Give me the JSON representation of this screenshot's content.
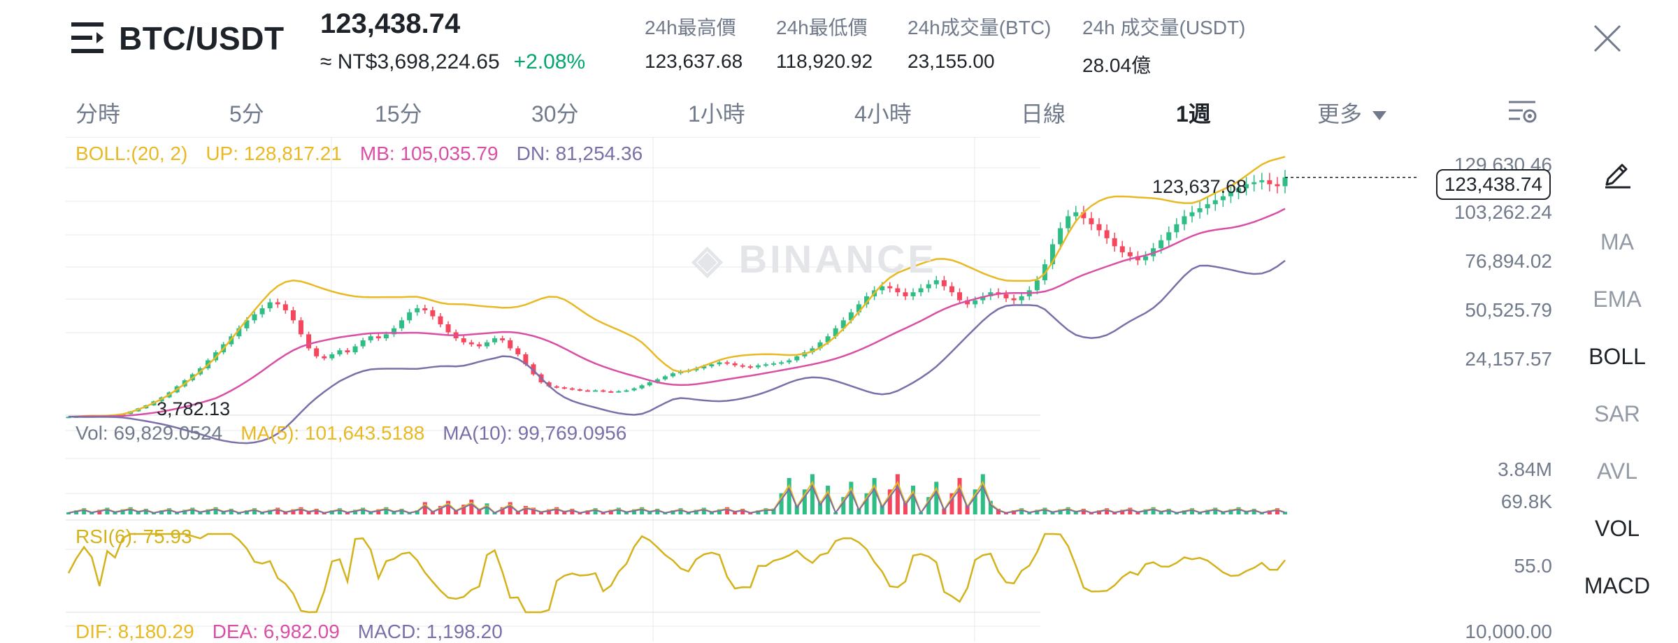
{
  "header": {
    "pair": "BTC/USDT",
    "price": "123,438.74",
    "price_local": "≈ NT$3,698,224.65",
    "change": "+2.08%",
    "stats": [
      {
        "label": "24h最高價",
        "value": "123,637.68"
      },
      {
        "label": "24h最低價",
        "value": "118,920.92"
      },
      {
        "label": "24h成交量(BTC)",
        "value": "23,155.00"
      },
      {
        "label": "24h 成交量(USDT)",
        "value": "28.04億"
      }
    ]
  },
  "intervals": [
    "分時",
    "5分",
    "15分",
    "30分",
    "1小時",
    "4小時",
    "日線",
    "1週",
    "更多"
  ],
  "active_interval": "1週",
  "watermark": "BINANCE",
  "boll": {
    "label": "BOLL:(20, 2)",
    "up": "UP: 128,817.21",
    "mb": "MB: 105,035.79",
    "dn": "DN: 81,254.36"
  },
  "price_axis": [
    "129,630.46",
    "103,262.24",
    "76,894.02",
    "50,525.79",
    "24,157.57"
  ],
  "current_price": "123,438.74",
  "high_label": "123,637.68",
  "low_label": "3,782.13",
  "vol": {
    "vol": "Vol: 69,829.0524",
    "ma5": "MA(5): 101,643.5188",
    "ma10": "MA(10): 99,769.0956"
  },
  "vol_axis": [
    "3.84M",
    "69.8K"
  ],
  "rsi": {
    "label": "RSI(6): 75.93"
  },
  "rsi_axis": [
    "55.0"
  ],
  "macd": {
    "dif": "DIF: 8,180.29",
    "dea": "DEA: 6,982.09",
    "macd": "MACD: 1,198.20"
  },
  "macd_axis": [
    "10,000.00"
  ],
  "side_items": [
    "MA",
    "EMA",
    "BOLL",
    "SAR",
    "AVL",
    "VOL",
    "MACD"
  ],
  "side_active": [
    "BOLL",
    "VOL",
    "MACD"
  ],
  "colors": {
    "up": "#2ebd85",
    "down": "#f6465d",
    "boll_up": "#e8b923",
    "boll_mb": "#d94fa5",
    "boll_dn": "#7a6fa8",
    "rsi": "#d4b21a",
    "text_muted": "#707a8a"
  },
  "chart_data": {
    "type": "candlestick",
    "price_ticks": [
      129630.46,
      103262.24,
      76894.02,
      50525.79,
      24157.57
    ],
    "current": 123438.74,
    "high": 123637.68,
    "low": 3782.13,
    "boll": {
      "up": 128817.21,
      "mb": 105035.79,
      "dn": 81254.36
    },
    "rsi_last": 75.93,
    "macd": {
      "dif": 8180.29,
      "dea": 6982.09,
      "macd": 1198.2
    },
    "close_series": [
      3800,
      3900,
      4100,
      4200,
      4000,
      4300,
      4600,
      5200,
      6500,
      8000,
      9500,
      11500,
      13500,
      16000,
      19000,
      22000,
      25000,
      28000,
      32000,
      36000,
      40000,
      44000,
      48000,
      52000,
      55000,
      58000,
      61000,
      60000,
      57000,
      52000,
      45000,
      38000,
      34000,
      33000,
      35000,
      37000,
      36000,
      39000,
      42000,
      44000,
      43000,
      45000,
      48000,
      52000,
      56000,
      58000,
      57000,
      54000,
      50000,
      46000,
      43000,
      41000,
      40000,
      39000,
      41000,
      43000,
      42000,
      38000,
      35000,
      30000,
      25000,
      21000,
      19000,
      18500,
      18000,
      17500,
      17000,
      16800,
      17000,
      16500,
      16300,
      16600,
      17000,
      18000,
      19500,
      21000,
      22500,
      24000,
      25500,
      26500,
      27000,
      28000,
      29000,
      30000,
      31000,
      30500,
      29500,
      29000,
      28500,
      29500,
      30000,
      30500,
      31000,
      32000,
      34000,
      36000,
      38000,
      41000,
      44000,
      48000,
      52000,
      56000,
      60000,
      64000,
      67000,
      69000,
      68000,
      66000,
      64000,
      66000,
      68000,
      70000,
      72000,
      69000,
      66000,
      62000,
      60000,
      62000,
      64000,
      66000,
      65000,
      63000,
      62000,
      64000,
      67000,
      72000,
      80000,
      90000,
      98000,
      104000,
      106000,
      103000,
      100000,
      97000,
      93000,
      89000,
      86000,
      84000,
      82000,
      84000,
      88000,
      92000,
      96000,
      100000,
      104000,
      106000,
      108000,
      110000,
      112000,
      114000,
      116000,
      118000,
      120000,
      121000,
      122000,
      120000,
      119000,
      123438.74
    ]
  }
}
